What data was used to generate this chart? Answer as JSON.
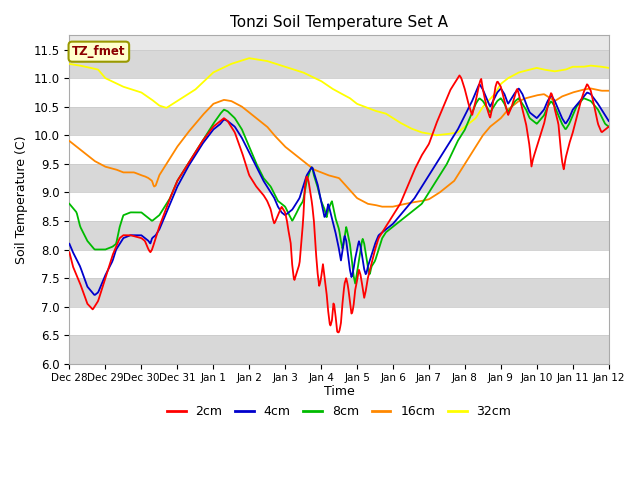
{
  "title": "Tonzi Soil Temperature Set A",
  "xlabel": "Time",
  "ylabel": "Soil Temperature (C)",
  "ylim": [
    6.0,
    11.75
  ],
  "yticks": [
    6.0,
    6.5,
    7.0,
    7.5,
    8.0,
    8.5,
    9.0,
    9.5,
    10.0,
    10.5,
    11.0,
    11.5
  ],
  "legend_label": "TZ_fmet",
  "legend_bg": "#ffffcc",
  "legend_border": "#999900",
  "legend_text_color": "#8b0000",
  "colors": {
    "2cm": "#ff0000",
    "4cm": "#0000cc",
    "8cm": "#00bb00",
    "16cm": "#ff8800",
    "32cm": "#ffff00"
  }
}
